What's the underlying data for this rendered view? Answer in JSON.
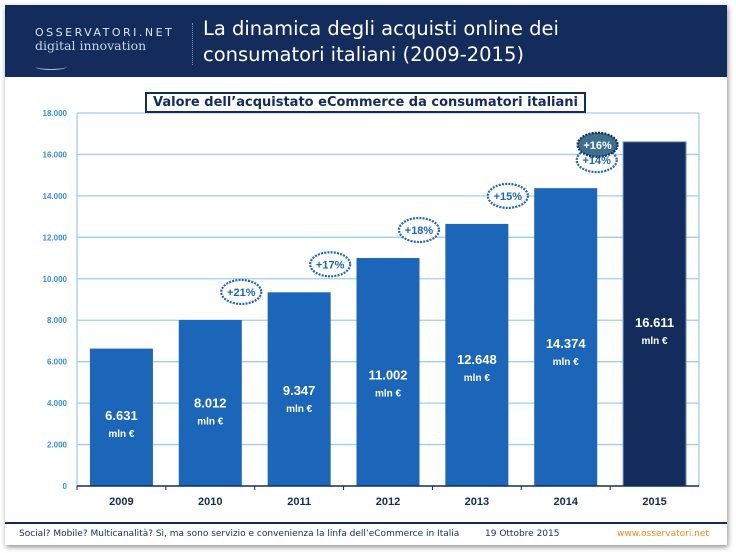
{
  "header": {
    "logo_top": "OSSERVATORI.NET",
    "logo_bottom": "digital innovation",
    "title_line1": "La dinamica degli acquisti online dei",
    "title_line2": "consumatori italiani (2009-2015)"
  },
  "footer": {
    "caption": "Social? Mobile? Multicanalità? Sì, ma sono servizio e convenienza la linfa dell’eCommerce in Italia",
    "date": "19 Ottobre 2015",
    "url": "www.osservatori.net"
  },
  "colors": {
    "bar": "#1b66b8",
    "bar_highlight": "#132c5c",
    "grid": "#9fcdf0",
    "axis_text": "#3a8ed8",
    "header": "#132c5c",
    "bubble_highlight": "#3f6f8f"
  },
  "chart_data": {
    "type": "bar",
    "title": "Valore dell’acquistato eCommerce da consumatori italiani",
    "categories": [
      "2009",
      "2010",
      "2011",
      "2012",
      "2013",
      "2014",
      "2015"
    ],
    "values": [
      6631,
      8012,
      9347,
      11002,
      12648,
      14374,
      16611
    ],
    "value_labels": [
      "6.631",
      "8.012",
      "9.347",
      "11.002",
      "12.648",
      "14.374",
      "16.611"
    ],
    "unit_label": "mln €",
    "growth_labels": [
      "",
      "+21%",
      "+17%",
      "+18%",
      "+15%",
      "+14%",
      "+16%"
    ],
    "ylim": [
      0,
      18000
    ],
    "yticks": [
      0,
      2000,
      4000,
      6000,
      8000,
      10000,
      12000,
      14000,
      16000,
      18000
    ],
    "ytick_labels": [
      "0",
      "2.000",
      "4.000",
      "6.000",
      "8.000",
      "10.000",
      "12.000",
      "14.000",
      "16.000",
      "18.000"
    ],
    "grid": true,
    "highlight_category": "2015"
  }
}
